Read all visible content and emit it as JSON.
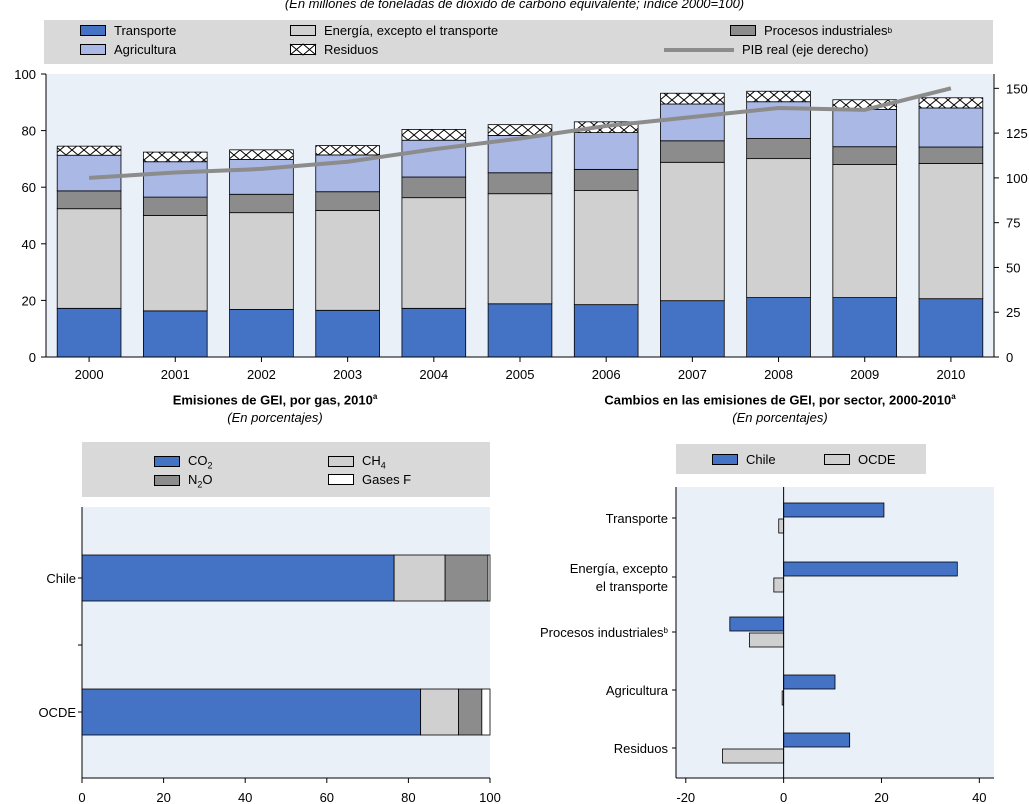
{
  "top_chart": {
    "subtitle": "(En millones de toneladas de dióxido de carbono equivalente; índice 2000=100)",
    "legend": {
      "transporte": "Transporte",
      "agricultura": "Agricultura",
      "energia": "Energía, excepto el transporte",
      "residuos": "Residuos",
      "procesos": "Procesos industriales",
      "procesos_sup": "b",
      "pib": "PIB real (eje derecho)"
    },
    "colors": {
      "transporte": "#4472c4",
      "energia": "#d0d0d0",
      "procesos": "#8c8c8c",
      "agricultura": "#aab8e6",
      "residuos": "#ffffff",
      "pib": "#8c8c8c"
    }
  },
  "bottom_left": {
    "title": "Emisiones de GEI, por gas, 2010",
    "title_sup": "a",
    "subtitle": "(En porcentajes)",
    "legend": {
      "co2": "CO",
      "co2_sub": "2",
      "ch4": "CH",
      "ch4_sub": "4",
      "n2o": "N",
      "n2o_sub": "2",
      "n2o_tail": "O",
      "gasesf": "Gases F"
    },
    "colors": {
      "co2": "#4472c4",
      "ch4": "#d0d0d0",
      "n2o": "#8c8c8c",
      "gasesf": "#ffffff"
    }
  },
  "bottom_right": {
    "title": "Cambios en las emisiones de GEI, por sector, 2000-2010",
    "title_sup": "a",
    "subtitle": "(En porcentajes)",
    "legend": {
      "chile": "Chile",
      "ocde": "OCDE"
    },
    "colors": {
      "chile": "#4472c4",
      "ocde": "#d0d0d0"
    }
  },
  "chart_data": [
    {
      "type": "bar",
      "stacked": true,
      "categories": [
        "2000",
        "2001",
        "2002",
        "2003",
        "2004",
        "2005",
        "2006",
        "2007",
        "2008",
        "2009",
        "2010"
      ],
      "series": [
        {
          "name": "Transporte",
          "values": [
            17.2,
            16.3,
            16.8,
            16.5,
            17.2,
            18.8,
            18.5,
            19.9,
            21.0,
            21.0,
            20.6
          ]
        },
        {
          "name": "Energía, excepto el transporte",
          "values": [
            35.2,
            33.7,
            34.2,
            35.3,
            39.1,
            38.9,
            40.3,
            48.9,
            49.1,
            47.0,
            47.8
          ]
        },
        {
          "name": "Procesos industriales",
          "values": [
            6.3,
            6.5,
            6.5,
            6.6,
            7.3,
            7.4,
            7.5,
            7.6,
            7.1,
            6.3,
            5.8
          ]
        },
        {
          "name": "Agricultura",
          "values": [
            12.6,
            12.5,
            12.3,
            13.0,
            13.0,
            13.2,
            13.0,
            13.0,
            13.0,
            13.2,
            13.8
          ]
        },
        {
          "name": "Residuos",
          "values": [
            3.2,
            3.4,
            3.4,
            3.3,
            3.8,
            3.8,
            3.8,
            3.8,
            3.7,
            3.4,
            3.6
          ]
        }
      ],
      "line_series": {
        "name": "PIB real (eje derecho)",
        "values": [
          100,
          103,
          105,
          109,
          116,
          122,
          129,
          134,
          139,
          138,
          150
        ]
      },
      "ylim": [
        0,
        100
      ],
      "yticks": [
        0,
        20,
        40,
        60,
        80,
        100
      ],
      "y2lim": [
        0,
        158
      ],
      "y2ticks": [
        0,
        25,
        50,
        75,
        100,
        125,
        150
      ],
      "grid": false,
      "legend_position": "top"
    },
    {
      "type": "bar",
      "orientation": "horizontal",
      "stacked": true,
      "title": "Emisiones de GEI, por gas, 2010",
      "subtitle": "(En porcentajes)",
      "categories": [
        "Chile",
        "OCDE"
      ],
      "series": [
        {
          "name": "CO2",
          "values": [
            76.5,
            83.0
          ]
        },
        {
          "name": "CH4",
          "values": [
            12.5,
            9.3
          ]
        },
        {
          "name": "N2O",
          "values": [
            10.5,
            5.7
          ]
        },
        {
          "name": "Gases F",
          "values": [
            0.5,
            2.0
          ]
        }
      ],
      "xlim": [
        0,
        100
      ],
      "xticks": [
        0,
        20,
        40,
        60,
        80,
        100
      ],
      "legend_position": "top"
    },
    {
      "type": "bar",
      "orientation": "horizontal",
      "title": "Cambios en las emisiones de GEI, por sector, 2000-2010",
      "subtitle": "(En porcentajes)",
      "categories": [
        "Transporte",
        "Energía, excepto el transporte",
        "Procesos industriales",
        "Agricultura",
        "Residuos"
      ],
      "category_lines": [
        [
          "Transporte"
        ],
        [
          "Energía, excepto",
          "el transporte"
        ],
        [
          "Procesos industriales"
        ],
        [
          "Agricultura"
        ],
        [
          "Residuos"
        ]
      ],
      "category_sup": [
        "",
        "",
        "b",
        "",
        ""
      ],
      "series": [
        {
          "name": "Chile",
          "values": [
            20.5,
            35.5,
            -11.0,
            10.5,
            13.5
          ]
        },
        {
          "name": "OCDE",
          "values": [
            -1.0,
            -2.0,
            -7.0,
            -0.3,
            -12.5
          ]
        }
      ],
      "xlim": [
        -22,
        43
      ],
      "xticks": [
        -20,
        0,
        20,
        40
      ],
      "legend_position": "top"
    }
  ]
}
